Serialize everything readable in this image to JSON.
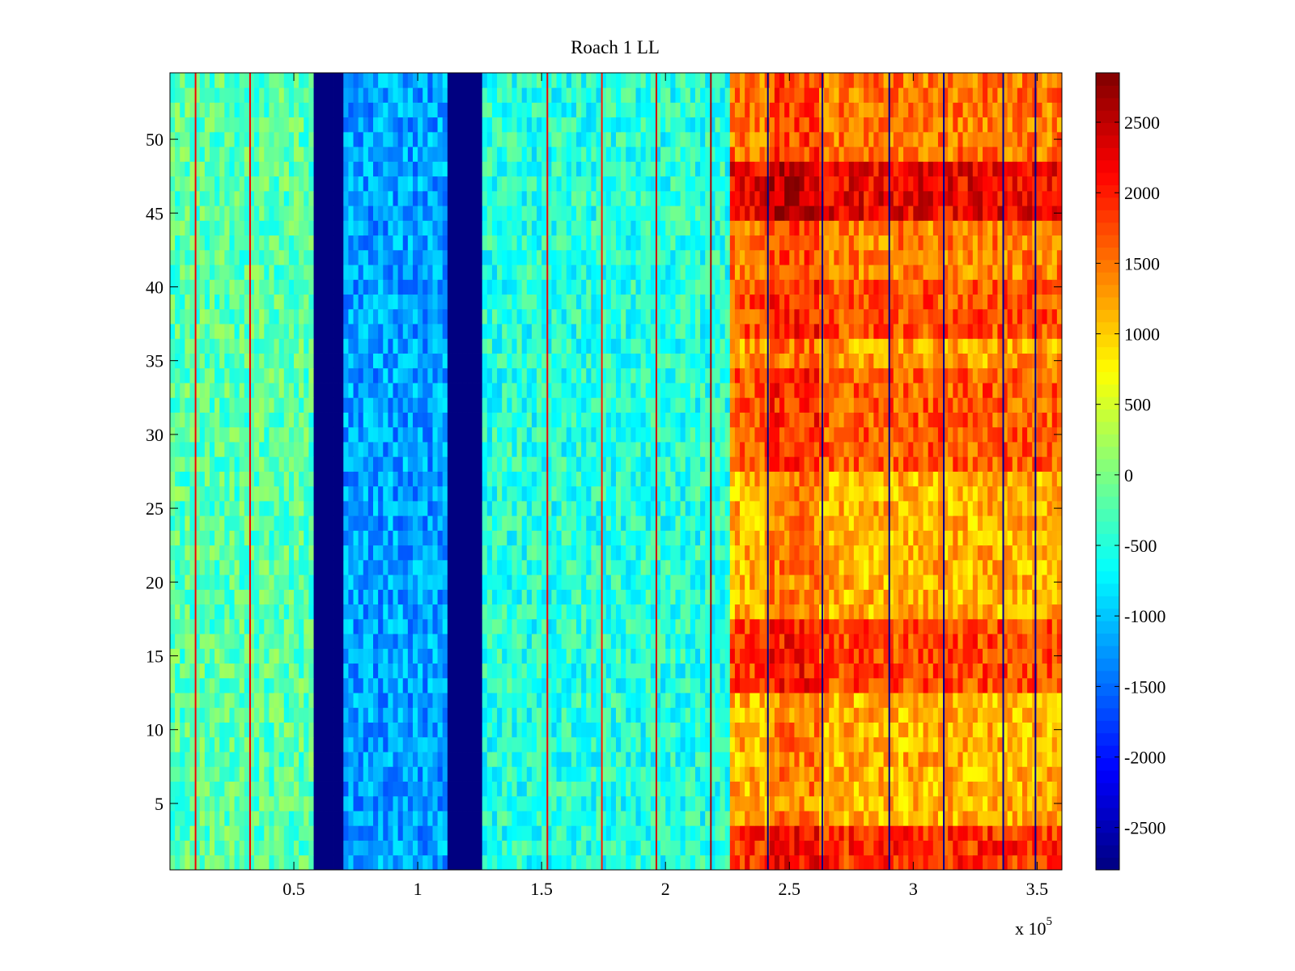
{
  "chart_data": {
    "type": "heatmap",
    "title": "Roach 1 LL",
    "xlabel": "",
    "ylabel": "",
    "x_multiplier_label": {
      "base": "x 10",
      "exponent": "5"
    },
    "xlim": [
      0,
      360000
    ],
    "ylim": [
      0.5,
      54.5
    ],
    "n_rows": 54,
    "x_ticks": [
      {
        "value": 50000,
        "label": "0.5"
      },
      {
        "value": 100000,
        "label": "1"
      },
      {
        "value": 150000,
        "label": "1.5"
      },
      {
        "value": 200000,
        "label": "2"
      },
      {
        "value": 250000,
        "label": "2.5"
      },
      {
        "value": 300000,
        "label": "3"
      },
      {
        "value": 350000,
        "label": "3.5"
      }
    ],
    "y_ticks": [
      {
        "value": 5,
        "label": "5"
      },
      {
        "value": 10,
        "label": "10"
      },
      {
        "value": 15,
        "label": "15"
      },
      {
        "value": 20,
        "label": "20"
      },
      {
        "value": 25,
        "label": "25"
      },
      {
        "value": 30,
        "label": "30"
      },
      {
        "value": 35,
        "label": "35"
      },
      {
        "value": 40,
        "label": "40"
      },
      {
        "value": 45,
        "label": "45"
      },
      {
        "value": 50,
        "label": "50"
      }
    ],
    "colorbar": {
      "colormap": "jet",
      "clim": [
        -2800,
        2850
      ],
      "ticks": [
        {
          "value": -2500,
          "label": "-2500"
        },
        {
          "value": -2000,
          "label": "-2000"
        },
        {
          "value": -1500,
          "label": "-1500"
        },
        {
          "value": -1000,
          "label": "-1000"
        },
        {
          "value": -500,
          "label": "-500"
        },
        {
          "value": 0,
          "label": "0"
        },
        {
          "value": 500,
          "label": "500"
        },
        {
          "value": 1000,
          "label": "1000"
        },
        {
          "value": 1500,
          "label": "1500"
        },
        {
          "value": 2000,
          "label": "2000"
        },
        {
          "value": 2500,
          "label": "2500"
        }
      ]
    },
    "column_segments": [
      {
        "x_start": 0,
        "x_end": 58000,
        "mean_value": -200
      },
      {
        "x_start": 58000,
        "x_end": 70000,
        "mean_value": -2800
      },
      {
        "x_start": 70000,
        "x_end": 113000,
        "mean_value": -1200
      },
      {
        "x_start": 113000,
        "x_end": 126000,
        "mean_value": -2800
      },
      {
        "x_start": 126000,
        "x_end": 226000,
        "mean_value": -500
      },
      {
        "x_start": 226000,
        "x_end": 360000,
        "mean_value": 1300
      }
    ],
    "row_offsets_high_region": [
      {
        "rows": [
          1,
          3
        ],
        "offset": 600
      },
      {
        "rows": [
          4,
          12
        ],
        "offset": -150
      },
      {
        "rows": [
          13,
          17
        ],
        "offset": 450
      },
      {
        "rows": [
          18,
          27
        ],
        "offset": -150
      },
      {
        "rows": [
          28,
          34
        ],
        "offset": 350
      },
      {
        "rows": [
          35,
          36
        ],
        "offset": -50
      },
      {
        "rows": [
          37,
          40
        ],
        "offset": 400
      },
      {
        "rows": [
          41,
          44
        ],
        "offset": 150
      },
      {
        "rows": [
          45,
          48
        ],
        "offset": 900
      },
      {
        "rows": [
          49,
          54
        ],
        "offset": 200
      }
    ],
    "vertical_lines": [
      {
        "x": 10000,
        "value": 2200
      },
      {
        "x": 32000,
        "value": 2200
      },
      {
        "x": 152000,
        "value": 2200
      },
      {
        "x": 174000,
        "value": 2000
      },
      {
        "x": 196000,
        "value": 2400
      },
      {
        "x": 218000,
        "value": 2600
      },
      {
        "x": 241000,
        "value": -2800
      },
      {
        "x": 263000,
        "value": -2800
      },
      {
        "x": 290000,
        "value": -2700
      },
      {
        "x": 312000,
        "value": -2700
      },
      {
        "x": 336000,
        "value": -2700
      },
      {
        "x": 349000,
        "value": -2700
      }
    ]
  }
}
